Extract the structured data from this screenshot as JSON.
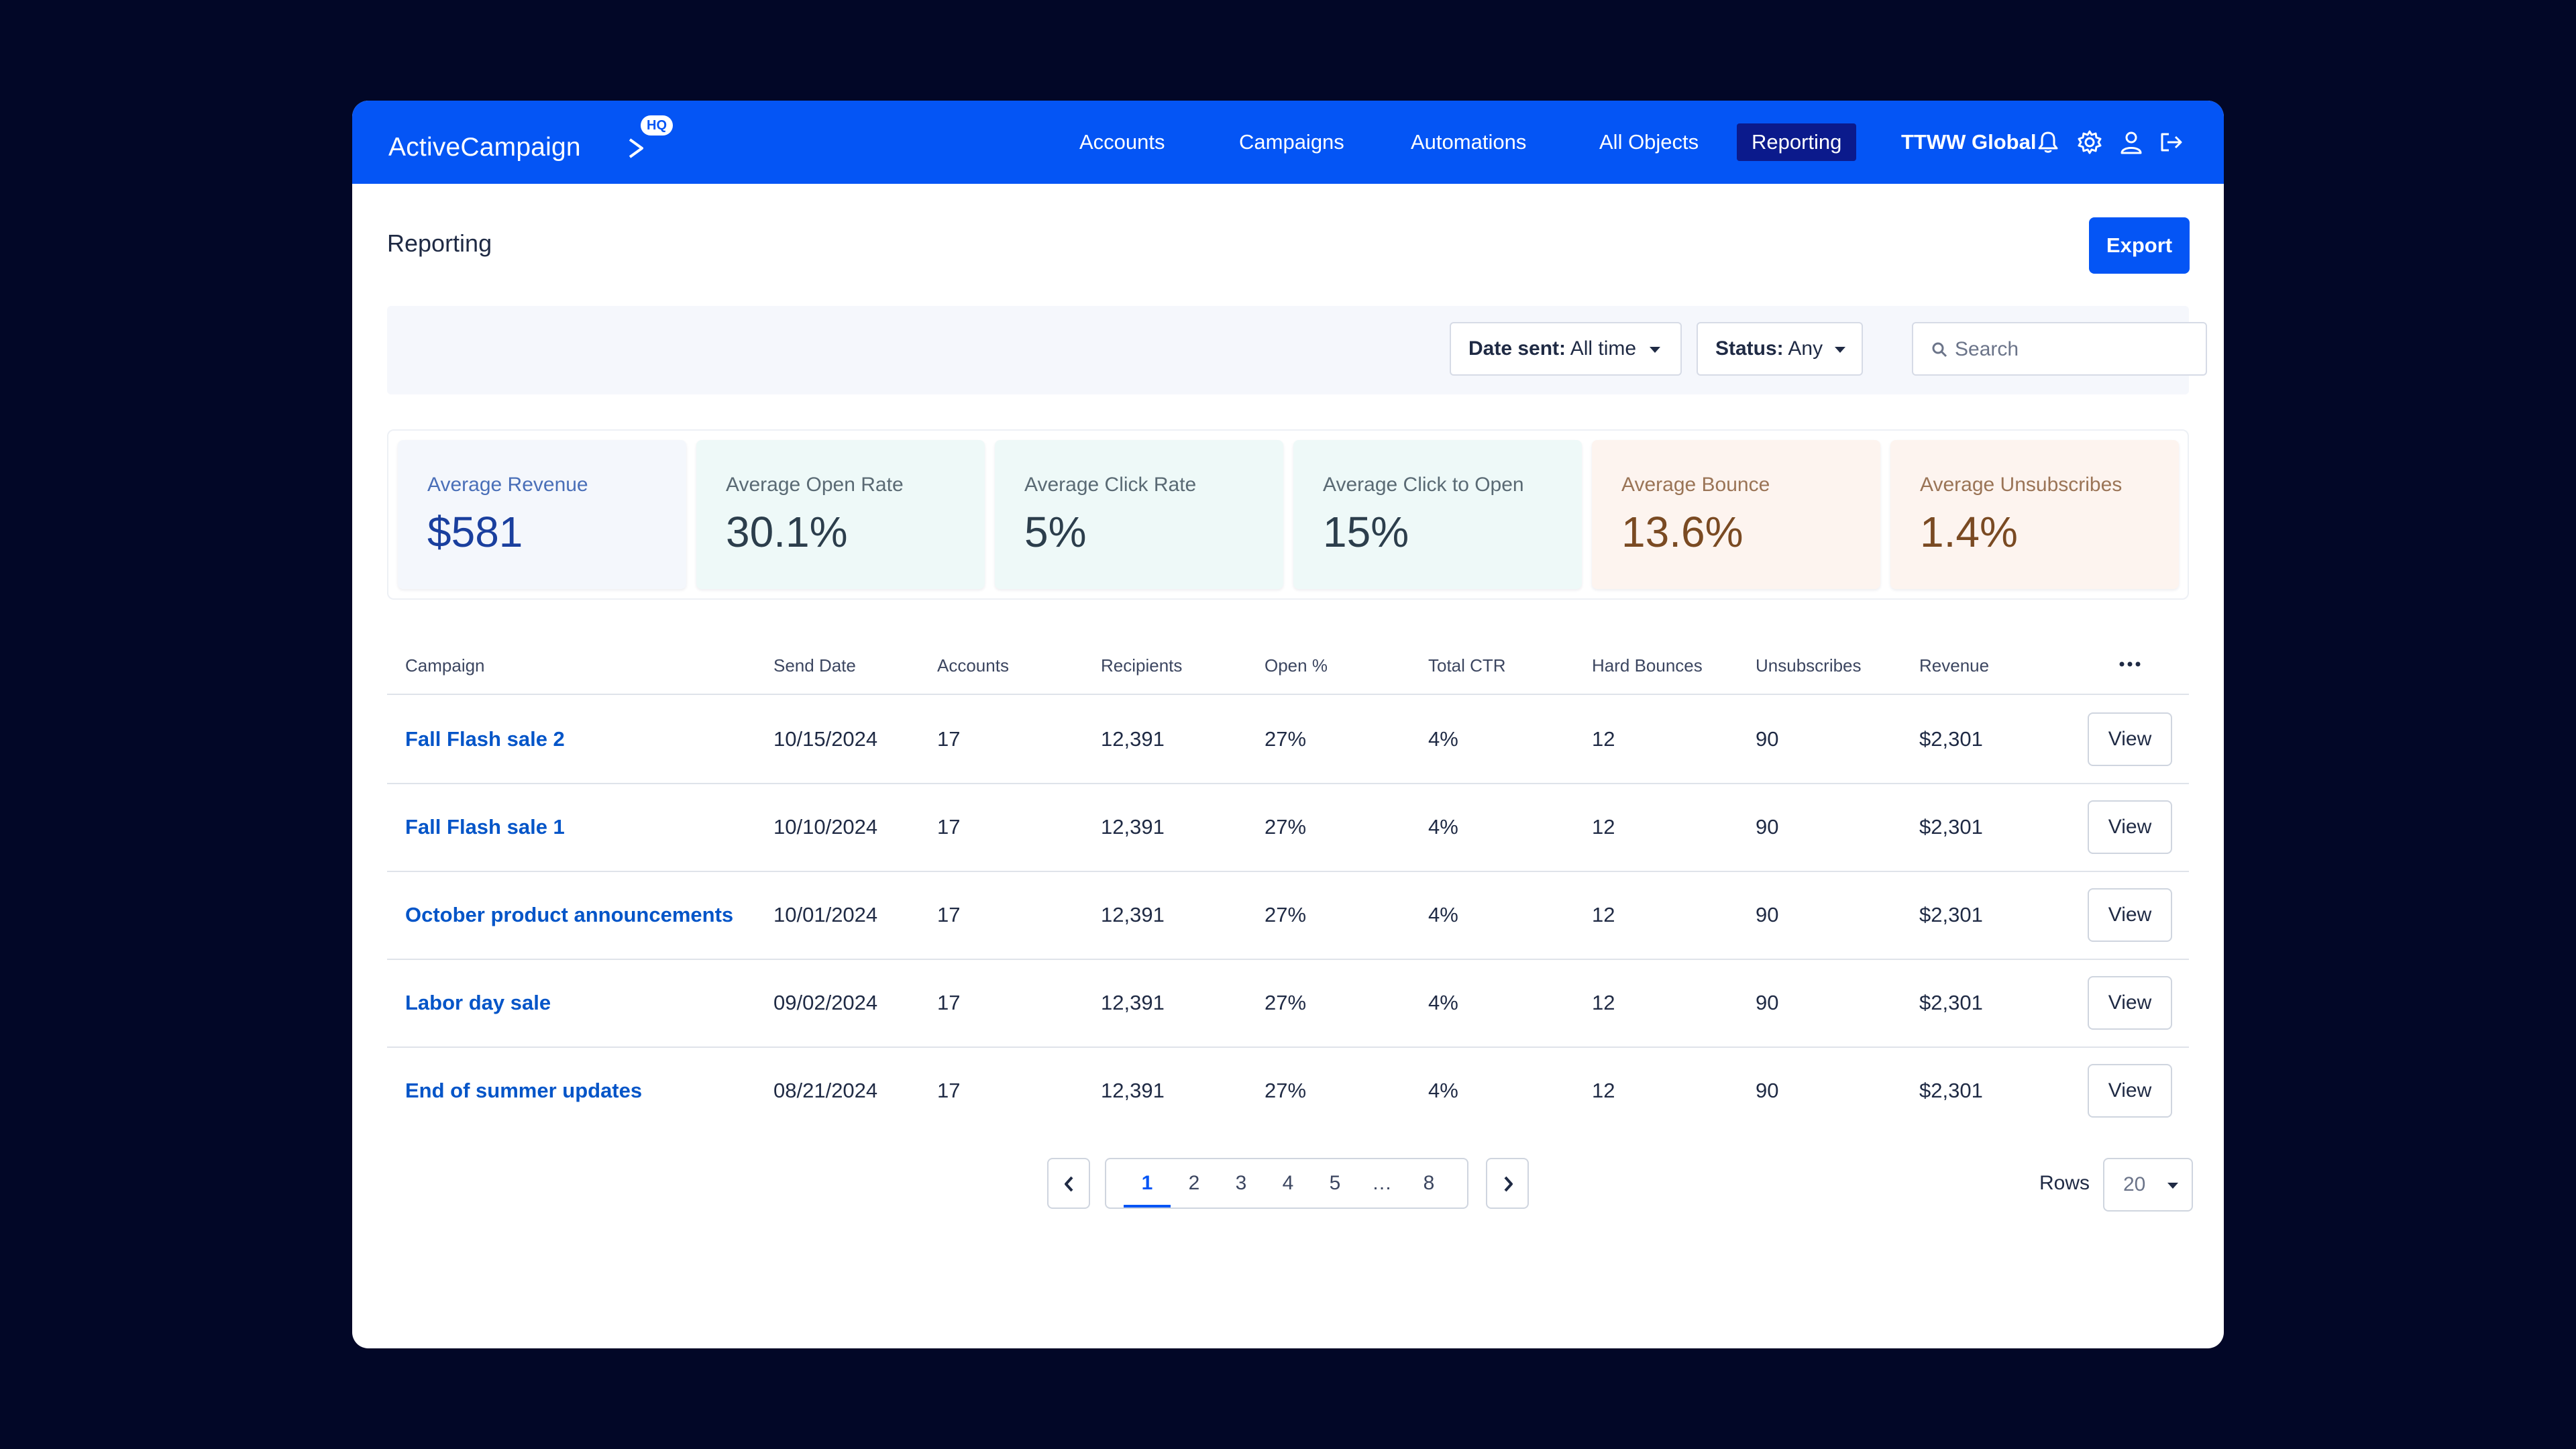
{
  "app": {
    "logo_text": "ActiveCampaign",
    "logo_badge": "HQ",
    "org_name": "TTWW Global",
    "brand_color": "#0455f5"
  },
  "nav": {
    "items": [
      {
        "label": "Accounts",
        "active": false
      },
      {
        "label": "Campaigns",
        "active": false
      },
      {
        "label": "Automations",
        "active": false
      },
      {
        "label": "All Objects",
        "active": false
      },
      {
        "label": "Reporting",
        "active": true
      }
    ]
  },
  "top_icons": [
    "bell-icon",
    "gear-icon",
    "user-icon",
    "logout-icon"
  ],
  "header": {
    "title": "Reporting",
    "export_label": "Export"
  },
  "filters": {
    "date_label": "Date sent:",
    "date_value": "All time",
    "status_label": "Status:",
    "status_value": "Any",
    "search_placeholder": "Search"
  },
  "stats": [
    {
      "label": "Average Revenue",
      "value": "$581"
    },
    {
      "label": "Average Open Rate",
      "value": "30.1%"
    },
    {
      "label": "Average Click Rate",
      "value": "5%"
    },
    {
      "label": "Average Click to Open",
      "value": "15%"
    },
    {
      "label": "Average Bounce",
      "value": "13.6%"
    },
    {
      "label": "Average Unsubscribes",
      "value": "1.4%"
    }
  ],
  "table": {
    "columns": [
      "Campaign",
      "Send Date",
      "Accounts",
      "Recipients",
      "Open %",
      "Total CTR",
      "Hard Bounces",
      "Unsubscribes",
      "Revenue"
    ],
    "rows": [
      {
        "campaign": "Fall Flash sale 2",
        "send_date": "10/15/2024",
        "accounts": "17",
        "recipients": "12,391",
        "open": "27%",
        "ctr": "4%",
        "hard_bounces": "12",
        "unsubscribes": "90",
        "revenue": "$2,301",
        "action": "View"
      },
      {
        "campaign": "Fall Flash sale 1",
        "send_date": "10/10/2024",
        "accounts": "17",
        "recipients": "12,391",
        "open": "27%",
        "ctr": "4%",
        "hard_bounces": "12",
        "unsubscribes": "90",
        "revenue": "$2,301",
        "action": "View"
      },
      {
        "campaign": "October product announcements",
        "send_date": "10/01/2024",
        "accounts": "17",
        "recipients": "12,391",
        "open": "27%",
        "ctr": "4%",
        "hard_bounces": "12",
        "unsubscribes": "90",
        "revenue": "$2,301",
        "action": "View"
      },
      {
        "campaign": "Labor day sale",
        "send_date": "09/02/2024",
        "accounts": "17",
        "recipients": "12,391",
        "open": "27%",
        "ctr": "4%",
        "hard_bounces": "12",
        "unsubscribes": "90",
        "revenue": "$2,301",
        "action": "View"
      },
      {
        "campaign": "End of summer updates",
        "send_date": "08/21/2024",
        "accounts": "17",
        "recipients": "12,391",
        "open": "27%",
        "ctr": "4%",
        "hard_bounces": "12",
        "unsubscribes": "90",
        "revenue": "$2,301",
        "action": "View"
      }
    ]
  },
  "pagination": {
    "pages": [
      "1",
      "2",
      "3",
      "4",
      "5",
      "…",
      "8"
    ],
    "current": "1",
    "rows_label": "Rows",
    "rows_value": "20"
  }
}
